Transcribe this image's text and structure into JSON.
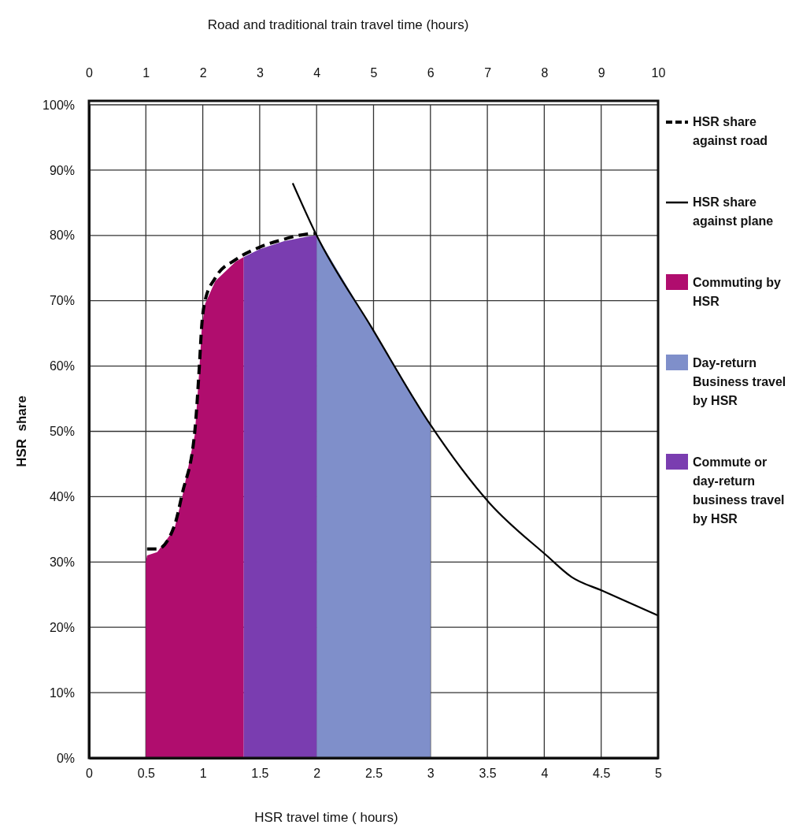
{
  "chart_data": {
    "type": "area",
    "xlabel": "HSR travel time ( hours)",
    "ylabel": "HSR  share",
    "x2label": "Road and traditional train travel time (hours)",
    "xlim": [
      0,
      5
    ],
    "xticks": [
      0,
      0.5,
      1,
      1.5,
      2,
      2.5,
      3,
      3.5,
      4,
      4.5,
      5
    ],
    "x2lim": [
      0,
      10
    ],
    "x2ticks": [
      0,
      1,
      2,
      3,
      4,
      5,
      6,
      7,
      8,
      9,
      10
    ],
    "ylim": [
      0,
      100
    ],
    "yticks": [
      {
        "value": 0,
        "label": "0%"
      },
      {
        "value": 10,
        "label": "10%"
      },
      {
        "value": 20,
        "label": "20%"
      },
      {
        "value": 30,
        "label": "30%"
      },
      {
        "value": 40,
        "label": "40%"
      },
      {
        "value": 50,
        "label": "50%"
      },
      {
        "value": 60,
        "label": "60%"
      },
      {
        "value": 70,
        "label": "70%"
      },
      {
        "value": 80,
        "label": "80%"
      },
      {
        "value": 90,
        "label": "90%"
      },
      {
        "value": 100,
        "label": "100%"
      }
    ],
    "grid": true,
    "legend": "right",
    "series": [
      {
        "name": "HSR share against road",
        "type": "line",
        "line_style": "dashed",
        "color": "#000000",
        "x": [
          0.51,
          0.6,
          0.75,
          0.82,
          0.93,
          0.97,
          0.99,
          1.02,
          1.11,
          1.29,
          1.5,
          1.71,
          1.91,
          1.99
        ],
        "values": [
          32,
          32,
          35.5,
          40.5,
          50,
          60,
          66,
          70,
          73.5,
          76.3,
          78.2,
          79.4,
          80.2,
          80.3
        ]
      },
      {
        "name": "HSR share against plane",
        "type": "line",
        "line_style": "solid",
        "color": "#000000",
        "x": [
          1.79,
          2.0,
          2.48,
          3.0,
          3.52,
          4.02,
          4.24,
          4.51,
          5.0
        ],
        "values": [
          88,
          80,
          66,
          51,
          39,
          31,
          27.7,
          25.6,
          21.8
        ]
      },
      {
        "name": "Commuting by HSR",
        "type": "area",
        "color": "#b00d6e",
        "x": [
          0.5,
          0.51,
          0.6,
          0.75,
          0.82,
          0.93,
          0.97,
          0.99,
          1.02,
          1.11,
          1.29,
          1.36
        ],
        "values": [
          30,
          31,
          31.5,
          35,
          40,
          49.5,
          59.5,
          65.5,
          69.5,
          73,
          76,
          76.7
        ]
      },
      {
        "name": "Day-return Business travel by HSR",
        "type": "area",
        "color": "#7f8fca",
        "x": [
          2.0,
          2.48,
          3.0
        ],
        "values": [
          80,
          66,
          51
        ]
      },
      {
        "name": "Commute or day-return business travel by HSR",
        "type": "area",
        "color": "#7a3db0",
        "x": [
          1.36,
          1.5,
          1.71,
          1.91,
          2.0
        ],
        "values": [
          76.7,
          77.9,
          79.1,
          79.8,
          80
        ]
      }
    ]
  }
}
